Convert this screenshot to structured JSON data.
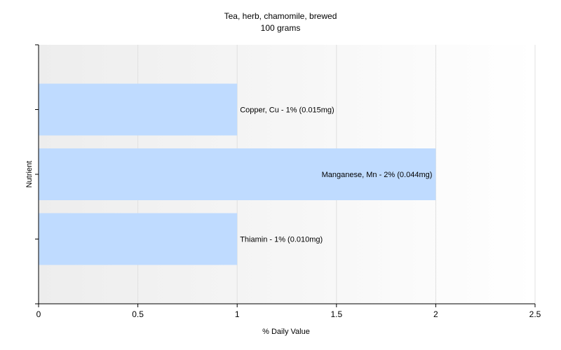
{
  "chart_data": {
    "type": "bar",
    "orientation": "horizontal",
    "title": "Tea, herb, chamomile, brewed",
    "subtitle": "100 grams",
    "xlabel": "% Daily Value",
    "ylabel": "Nutrient",
    "xlim": [
      0,
      2.5
    ],
    "xticks": [
      "0",
      "0.5",
      "1",
      "1.5",
      "2",
      "2.5"
    ],
    "categories": [
      "Copper, Cu",
      "Manganese, Mn",
      "Thiamin"
    ],
    "values": [
      1,
      2,
      1
    ],
    "labels": [
      "Copper, Cu - 1% (0.015mg)",
      "Manganese, Mn - 2% (0.044mg)",
      "Thiamin - 1% (0.010mg)"
    ],
    "bar_color": "#bfdbff",
    "grid": true,
    "legend": "none"
  }
}
